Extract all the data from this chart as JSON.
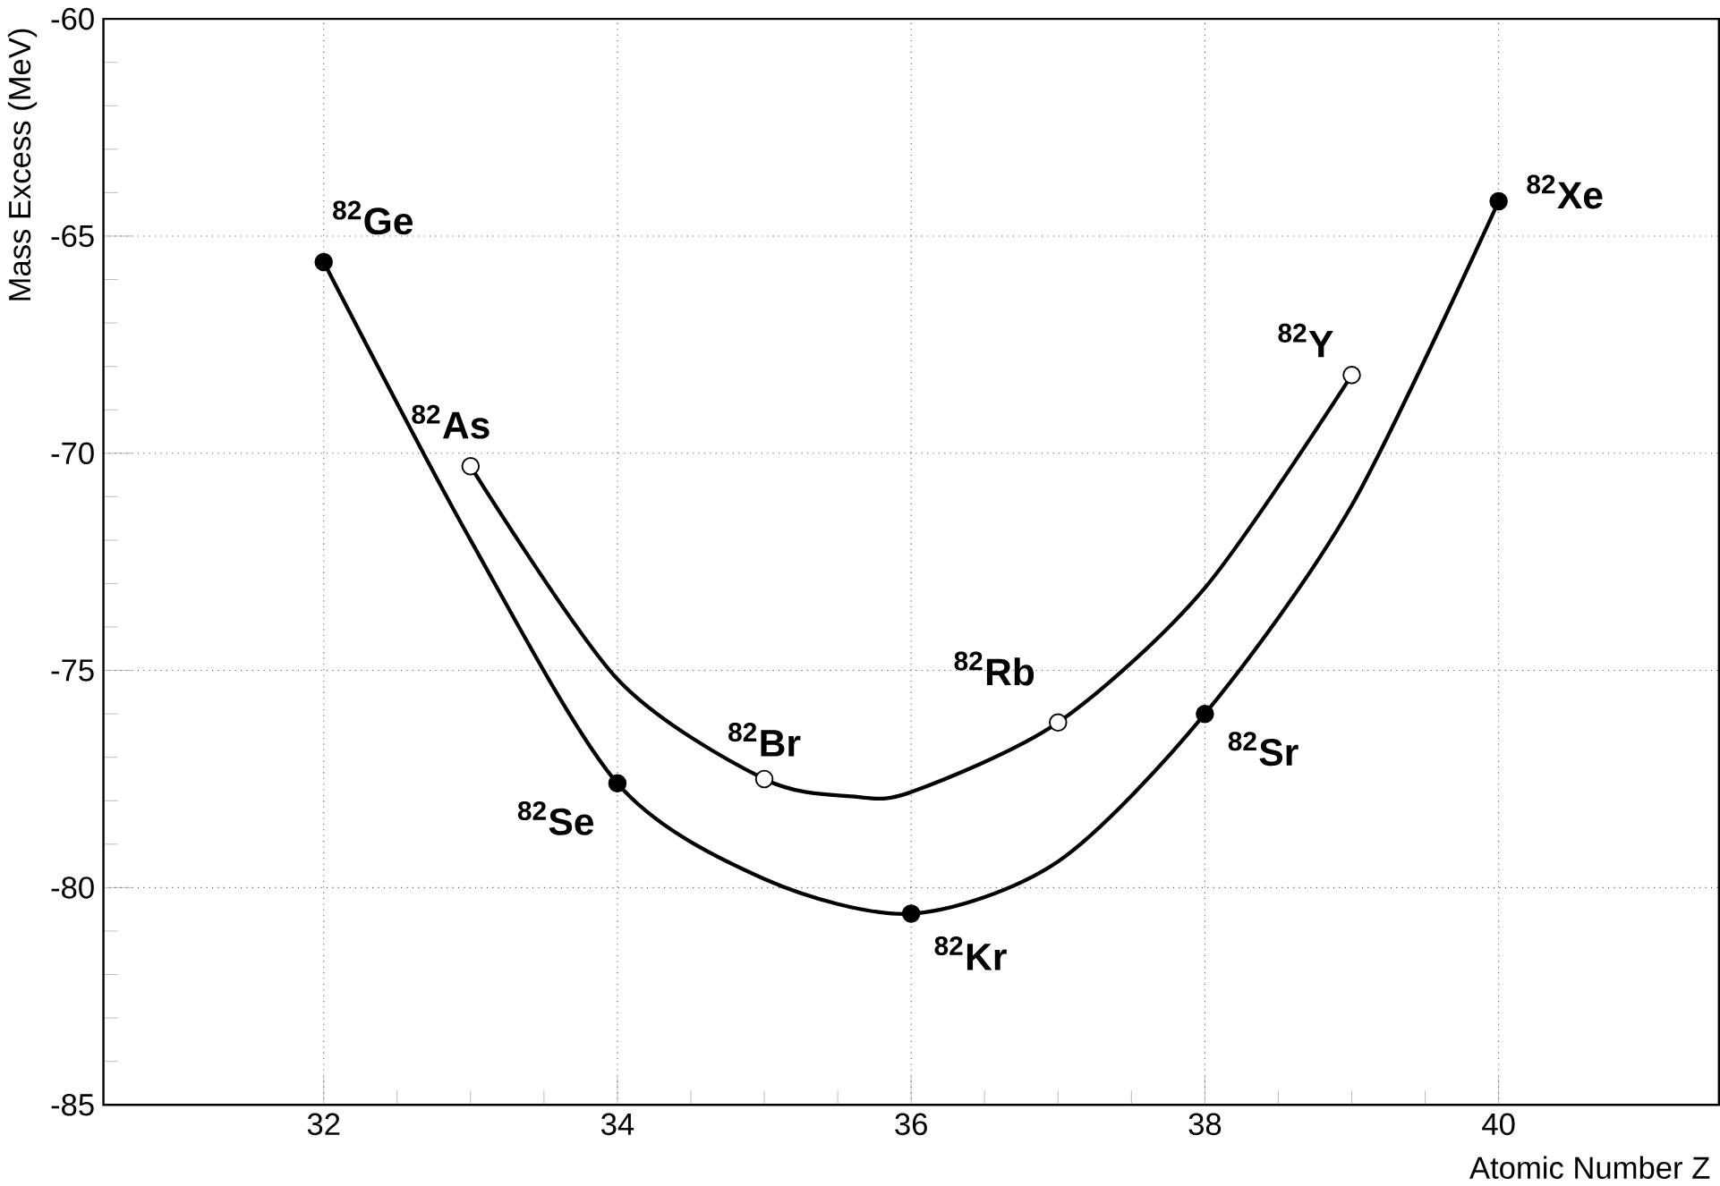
{
  "chart_data": {
    "type": "scatter",
    "xlabel": "Atomic Number Z",
    "ylabel": "Mass Excess (MeV)",
    "xlim": [
      30.5,
      41.5
    ],
    "ylim": [
      -85,
      -60
    ],
    "xticks": [
      32,
      34,
      36,
      38,
      40
    ],
    "yticks": [
      -85,
      -80,
      -75,
      -70,
      -65,
      -60
    ],
    "grid": true,
    "series": [
      {
        "type": "line",
        "color": "#000000",
        "marker": "none",
        "x": [
          32,
          33,
          34,
          35,
          36,
          37,
          38,
          39,
          40
        ],
        "values": [
          -65.6,
          -72.0,
          -77.6,
          -79.8,
          -80.6,
          -79.4,
          -76.0,
          -71.2,
          -64.2
        ]
      },
      {
        "type": "line",
        "color": "#000000",
        "marker": "none",
        "x": [
          33,
          34,
          35,
          35.6,
          36,
          37,
          38,
          39
        ],
        "values": [
          -70.3,
          -75.2,
          -77.5,
          -77.9,
          -77.8,
          -76.2,
          -73.1,
          -68.2
        ]
      },
      {
        "color": "#000000",
        "marker": "circle",
        "x": [
          32,
          34,
          36,
          38,
          40
        ],
        "values": [
          -65.6,
          -77.6,
          -80.6,
          -76.0,
          -64.2
        ]
      },
      {
        "color": "#ffffff",
        "marker": "circle",
        "x": [
          33,
          35,
          37,
          39
        ],
        "values": [
          -70.3,
          -77.5,
          -76.2,
          -68.2
        ]
      }
    ],
    "annotations": [
      {
        "text": "$^{82}$Ge",
        "x": 32,
        "y": -65.6
      },
      {
        "text": "$^{82}$As",
        "x": 33,
        "y": -70.3
      },
      {
        "text": "$^{82}$Se",
        "x": 34,
        "y": -77.6
      },
      {
        "text": "$^{82}$Br",
        "x": 35,
        "y": -77.5
      },
      {
        "text": "$^{82}$Kr",
        "x": 36,
        "y": -80.6
      },
      {
        "text": "$^{82}$Rb",
        "x": 37,
        "y": -76.2
      },
      {
        "text": "$^{82}$Sr",
        "x": 38,
        "y": -76.0
      },
      {
        "text": "$^{82}$Y",
        "x": 39,
        "y": -68.2
      },
      {
        "text": "$^{82}$Xe",
        "x": 40,
        "y": -64.2
      }
    ]
  }
}
